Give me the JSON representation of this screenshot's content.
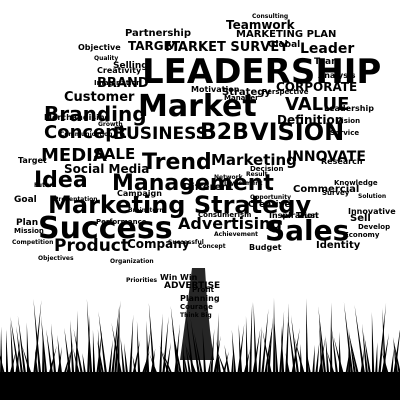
{
  "image": {
    "subject": "tree-shaped word cloud",
    "colors": {
      "ink": "#000000",
      "background": "#ffffff"
    }
  },
  "words": [
    "LEADERSHIP",
    "Market",
    "Success",
    "Sales",
    "Marketing Strategy",
    "Management",
    "Idea",
    "Trend",
    "VISION",
    "B2B",
    "BUSINESS",
    "Concept",
    "Branding",
    "Customer",
    "BRAND",
    "VALUE",
    "INNOVATE",
    "MEDIA",
    "SALE",
    "Advertising",
    "Product",
    "Company",
    "TARGET",
    "MARKET SURVEY",
    "MARKETING PLAN",
    "Teamwork",
    "Partnership",
    "Leader",
    "CORPORATE",
    "Goal",
    "Strategy",
    "Marketing",
    "Definition",
    "Social Media",
    "Creativity",
    "Global",
    "Team",
    "Objective",
    "Selling",
    "Analysis",
    "Motivation",
    "Manager",
    "Campaign",
    "Different",
    "Future",
    "Commercial",
    "Research",
    "Planning",
    "Budget",
    "Identity",
    "Develop",
    "Trust",
    "Inspiration",
    "Perspective",
    "Consumerism",
    "Communication",
    "Successful",
    "Profit",
    "Win Win",
    "ADVERTISE",
    "Courage",
    "Think Big",
    "Merchandising",
    "Quality",
    "Solution",
    "Knowledge",
    "Competition",
    "Opportunity",
    "Service",
    "Brainstorm",
    "Economy",
    "Vision",
    "Mission",
    "Performance",
    "Innovative",
    "Result",
    "Growth",
    "Presentation",
    "Consulting",
    "Organization",
    "Investment",
    "Network",
    "Sell",
    "Survey",
    "Achievement",
    "Leadership",
    "Target",
    "Plan",
    "Creative",
    "Imagination",
    "Objectives",
    "Priorities",
    "Decision",
    "Concept"
  ]
}
